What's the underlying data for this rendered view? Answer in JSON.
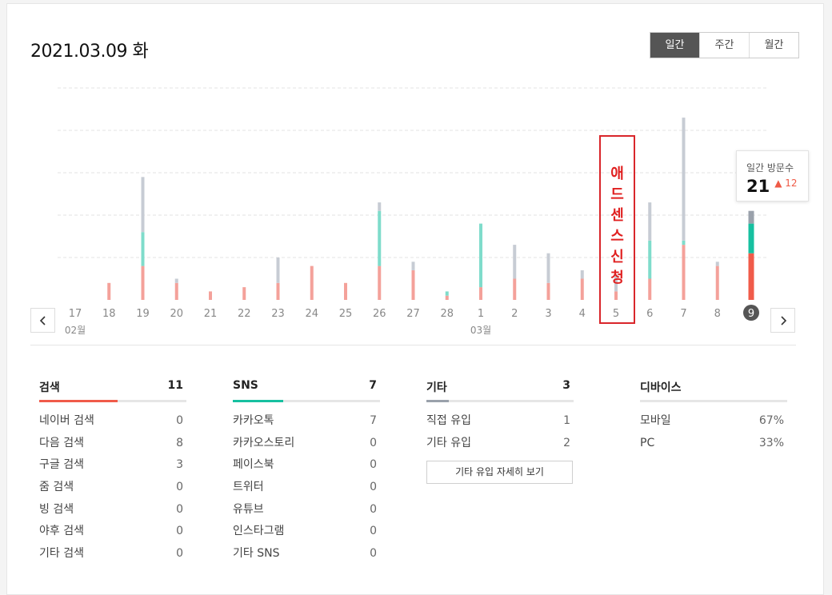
{
  "header": {
    "date": "2021.03.09 화",
    "tabs": [
      {
        "label": "일간",
        "active": true
      },
      {
        "label": "주간",
        "active": false
      },
      {
        "label": "월간",
        "active": false
      }
    ]
  },
  "chart_data": {
    "type": "bar",
    "stacked": true,
    "categories": [
      "17",
      "18",
      "19",
      "20",
      "21",
      "22",
      "23",
      "24",
      "25",
      "26",
      "27",
      "28",
      "1",
      "2",
      "3",
      "4",
      "5",
      "6",
      "7",
      "8",
      "9"
    ],
    "month_labels": [
      {
        "label": "02월",
        "at": "17"
      },
      {
        "label": "03월",
        "at": "1"
      }
    ],
    "selected": "9",
    "series": [
      {
        "key": "search",
        "color": "#f4a19a",
        "selected_color": "#f05b4a",
        "values": [
          0,
          4,
          8,
          4,
          2,
          3,
          4,
          8,
          4,
          8,
          7,
          1,
          3,
          5,
          4,
          5,
          2,
          5,
          13,
          8,
          11
        ]
      },
      {
        "key": "sns",
        "color": "#7fdccb",
        "selected_color": "#17c0a0",
        "values": [
          0,
          0,
          8,
          0,
          0,
          0,
          0,
          0,
          0,
          13,
          0,
          1,
          15,
          0,
          0,
          0,
          0,
          9,
          1,
          0,
          7
        ]
      },
      {
        "key": "etc",
        "color": "#c7ccd4",
        "selected_color": "#9aa1ab",
        "values": [
          0,
          0,
          13,
          1,
          0,
          0,
          6,
          0,
          0,
          2,
          2,
          0,
          0,
          8,
          7,
          2,
          4,
          9,
          29,
          1,
          3
        ]
      }
    ],
    "ylim": [
      0,
      50
    ],
    "grid": true
  },
  "tooltip": {
    "label": "일간 방문수",
    "value": "21",
    "change": "▲ 12"
  },
  "annotation": {
    "chars": [
      "애",
      "드",
      "센",
      "스",
      "신",
      "청"
    ]
  },
  "stats": {
    "search": {
      "title": "검색",
      "total": "11",
      "color": "#f05b4a",
      "fill_fraction": 0.53,
      "rows": [
        {
          "label": "네이버 검색",
          "value": "0"
        },
        {
          "label": "다음 검색",
          "value": "8"
        },
        {
          "label": "구글 검색",
          "value": "3"
        },
        {
          "label": "줌 검색",
          "value": "0"
        },
        {
          "label": "빙 검색",
          "value": "0"
        },
        {
          "label": "야후 검색",
          "value": "0"
        },
        {
          "label": "기타 검색",
          "value": "0"
        }
      ]
    },
    "sns": {
      "title": "SNS",
      "total": "7",
      "color": "#17c0a0",
      "fill_fraction": 0.34,
      "rows": [
        {
          "label": "카카오톡",
          "value": "7"
        },
        {
          "label": "카카오스토리",
          "value": "0"
        },
        {
          "label": "페이스북",
          "value": "0"
        },
        {
          "label": "트위터",
          "value": "0"
        },
        {
          "label": "유튜브",
          "value": "0"
        },
        {
          "label": "인스타그램",
          "value": "0"
        },
        {
          "label": "기타 SNS",
          "value": "0"
        }
      ]
    },
    "etc": {
      "title": "기타",
      "total": "3",
      "color": "#9aa1ab",
      "fill_fraction": 0.15,
      "rows": [
        {
          "label": "직접 유입",
          "value": "1"
        },
        {
          "label": "기타 유입",
          "value": "2"
        }
      ],
      "detail_button": "기타 유입 자세히 보기"
    },
    "device": {
      "title": "디바이스",
      "rows": [
        {
          "label": "모바일",
          "value": "67%"
        },
        {
          "label": "PC",
          "value": "33%"
        }
      ]
    }
  },
  "icons": {
    "prev": "chevron-left-icon",
    "next": "chevron-right-icon"
  }
}
